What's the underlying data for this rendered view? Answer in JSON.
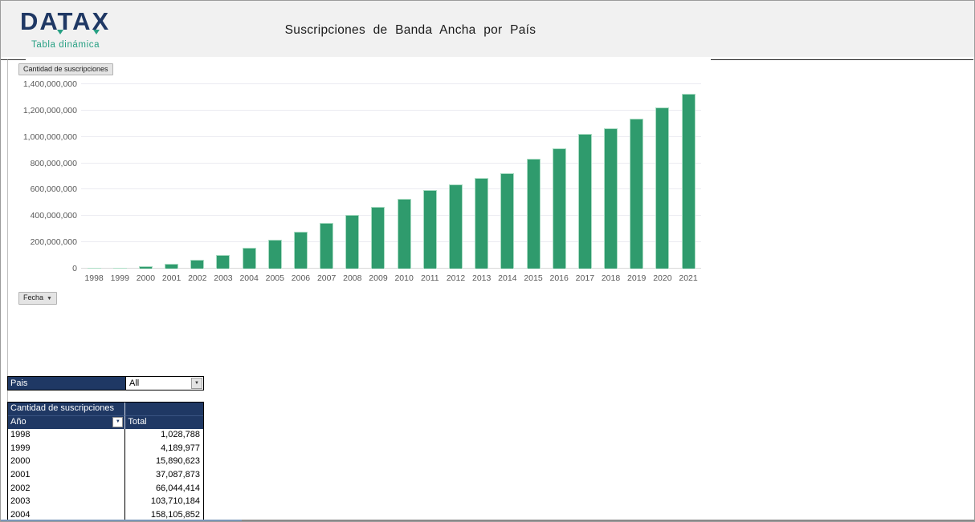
{
  "brand": {
    "logo": "DATAX",
    "tagline": "Tabla dinámica"
  },
  "header": {
    "title": "Suscripciones de Banda Ancha por País"
  },
  "chart": {
    "field_button": "Cantidad de suscripciones",
    "axis_button": "Fecha"
  },
  "chart_data": {
    "type": "bar",
    "title": "Suscripciones de Banda Ancha por País",
    "xlabel": "Fecha",
    "ylabel": "Cantidad de suscripciones",
    "ylim": [
      0,
      1400000000
    ],
    "grid": true,
    "legend": false,
    "bar_color": "#2f9b6d",
    "categories": [
      "1998",
      "1999",
      "2000",
      "2001",
      "2002",
      "2003",
      "2004",
      "2005",
      "2006",
      "2007",
      "2008",
      "2009",
      "2010",
      "2011",
      "2012",
      "2013",
      "2014",
      "2015",
      "2016",
      "2017",
      "2018",
      "2019",
      "2020",
      "2021"
    ],
    "values": [
      1028788,
      4189977,
      15890623,
      37087873,
      66044414,
      103710184,
      158105852,
      220000000,
      281000000,
      347000000,
      408000000,
      469000000,
      530000000,
      598000000,
      641000000,
      688000000,
      724000000,
      835000000,
      915000000,
      1021000000,
      1066000000,
      1139000000,
      1225000000,
      1330000000
    ],
    "yticks": [
      {
        "value": 0,
        "label": "0"
      },
      {
        "value": 200000000,
        "label": "200,000,000"
      },
      {
        "value": 400000000,
        "label": "400,000,000"
      },
      {
        "value": 600000000,
        "label": "600,000,000"
      },
      {
        "value": 800000000,
        "label": "800,000,000"
      },
      {
        "value": 1000000000,
        "label": "1,000,000,000"
      },
      {
        "value": 1200000000,
        "label": "1,200,000,000"
      },
      {
        "value": 1400000000,
        "label": "1,400,000,000"
      }
    ]
  },
  "filter": {
    "label": "Pais",
    "value": "All"
  },
  "pivot": {
    "values_label": "Cantidad de suscripciones",
    "row_label": "Año",
    "total_label": "Total",
    "rows": [
      {
        "year": "1998",
        "total": "1,028,788"
      },
      {
        "year": "1999",
        "total": "4,189,977"
      },
      {
        "year": "2000",
        "total": "15,890,623"
      },
      {
        "year": "2001",
        "total": "37,087,873"
      },
      {
        "year": "2002",
        "total": "66,044,414"
      },
      {
        "year": "2003",
        "total": "103,710,184"
      },
      {
        "year": "2004",
        "total": "158,105,852"
      }
    ]
  },
  "colors": {
    "navy": "#1f3864",
    "teal": "#27a083",
    "bar_green": "#2f9b6d",
    "band_gray": "#f1f1f1"
  }
}
